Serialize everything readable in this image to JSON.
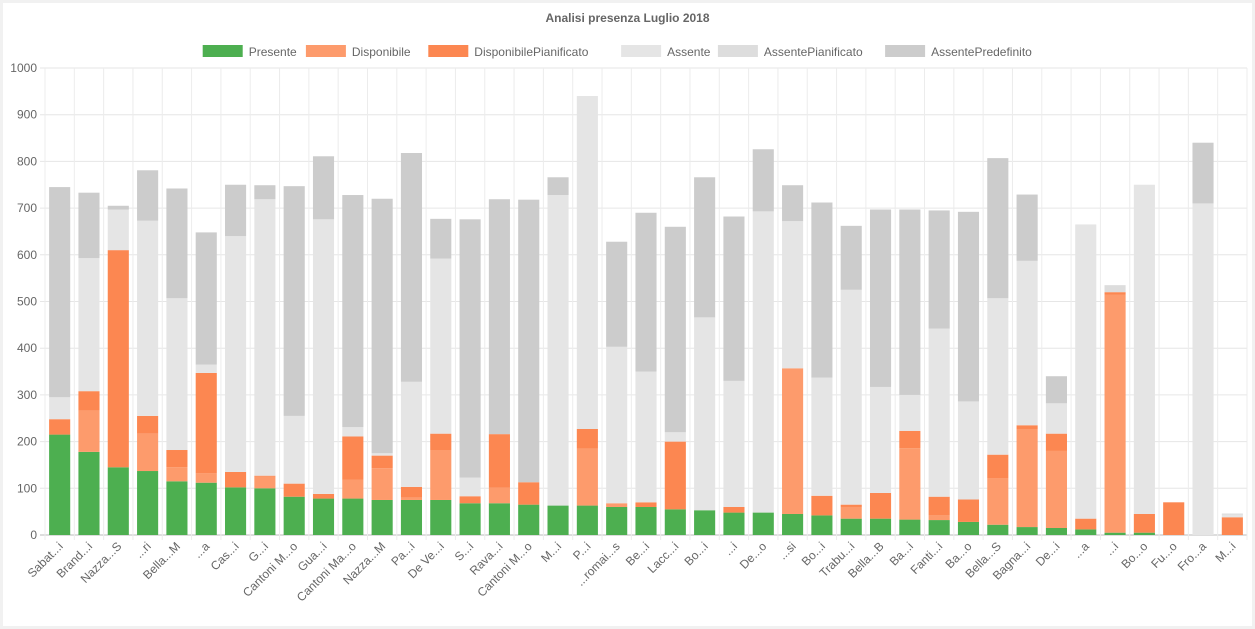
{
  "chart_data": {
    "type": "bar",
    "stacked": true,
    "title": "Analisi presenza Luglio 2018",
    "legend_position": "top",
    "grid": true,
    "ylim": [
      0,
      1000
    ],
    "yticks": [
      0,
      100,
      200,
      300,
      400,
      500,
      600,
      700,
      800,
      900,
      1000
    ],
    "categories": [
      "Sabat...i",
      "Brand...i",
      "Nazza...S",
      "...ri",
      "Bella...M",
      "...a",
      "Cas...i",
      "G...i",
      "Cantoni M...o",
      "Gua...i",
      "Cantoni Ma...o",
      "Nazza...M",
      "Pa...i",
      "De Ve...i",
      "S...i",
      "Rava...i",
      "Cantoni M...o",
      "M...i",
      "P...i",
      "...romai...s",
      "Be...i",
      "Lacc...i",
      "Bo...i",
      "...i",
      "De...o",
      "...si",
      "Bo...i",
      "Trabu...i",
      "Bella...B",
      "Ba...i",
      "Fanti...i",
      "Ba...o",
      "Bella...S",
      "Bagna...i",
      "De...i",
      "...a",
      "...i",
      "Bo...o",
      "Fu...o",
      "Fro...a",
      "M...i"
    ],
    "series": [
      {
        "name": "Presente",
        "color": "#4daf50",
        "values": [
          215,
          178,
          145,
          137,
          115,
          112,
          102,
          100,
          82,
          78,
          78,
          75,
          75,
          75,
          68,
          68,
          65,
          63,
          63,
          60,
          60,
          55,
          53,
          48,
          48,
          45,
          42,
          35,
          35,
          33,
          32,
          28,
          22,
          17,
          15,
          12,
          5,
          5,
          0,
          0,
          0
        ]
      },
      {
        "name": "Disponibile",
        "color": "#fd9b6c",
        "values": [
          0,
          88,
          0,
          80,
          30,
          20,
          0,
          25,
          0,
          0,
          40,
          68,
          5,
          107,
          0,
          33,
          0,
          0,
          122,
          8,
          0,
          0,
          0,
          0,
          0,
          312,
          0,
          25,
          0,
          153,
          10,
          0,
          100,
          210,
          165,
          0,
          510,
          0,
          0,
          0,
          0
        ]
      },
      {
        "name": "DisponibilePianificato",
        "color": "#fc8751",
        "values": [
          33,
          42,
          465,
          38,
          37,
          215,
          33,
          2,
          28,
          10,
          93,
          27,
          23,
          35,
          15,
          115,
          48,
          0,
          42,
          0,
          10,
          145,
          0,
          12,
          0,
          0,
          42,
          5,
          55,
          37,
          40,
          48,
          50,
          8,
          37,
          23,
          5,
          40,
          70,
          0,
          38
        ]
      },
      {
        "name": "Assente",
        "color": "#e5e5e5",
        "values": [
          47,
          285,
          87,
          418,
          325,
          18,
          505,
          592,
          145,
          588,
          20,
          5,
          225,
          375,
          40,
          0,
          0,
          665,
          713,
          335,
          280,
          20,
          413,
          270,
          645,
          315,
          253,
          460,
          227,
          77,
          360,
          210,
          335,
          352,
          65,
          630,
          0,
          705,
          0,
          710,
          5
        ]
      },
      {
        "name": "AssentePianificato",
        "color": "#dddddd",
        "values": [
          0,
          0,
          0,
          0,
          0,
          0,
          0,
          0,
          0,
          0,
          0,
          0,
          0,
          0,
          0,
          0,
          0,
          0,
          0,
          0,
          0,
          0,
          0,
          0,
          0,
          0,
          0,
          0,
          0,
          0,
          0,
          0,
          0,
          0,
          0,
          0,
          15,
          0,
          0,
          0,
          3
        ]
      },
      {
        "name": "AssentePredefinito",
        "color": "#cccccc",
        "values": [
          450,
          140,
          8,
          108,
          235,
          283,
          110,
          30,
          492,
          135,
          497,
          545,
          490,
          85,
          553,
          503,
          605,
          38,
          0,
          225,
          340,
          440,
          300,
          352,
          133,
          77,
          375,
          137,
          380,
          397,
          253,
          406,
          300,
          142,
          58,
          0,
          0,
          0,
          0,
          130,
          0
        ]
      }
    ]
  }
}
